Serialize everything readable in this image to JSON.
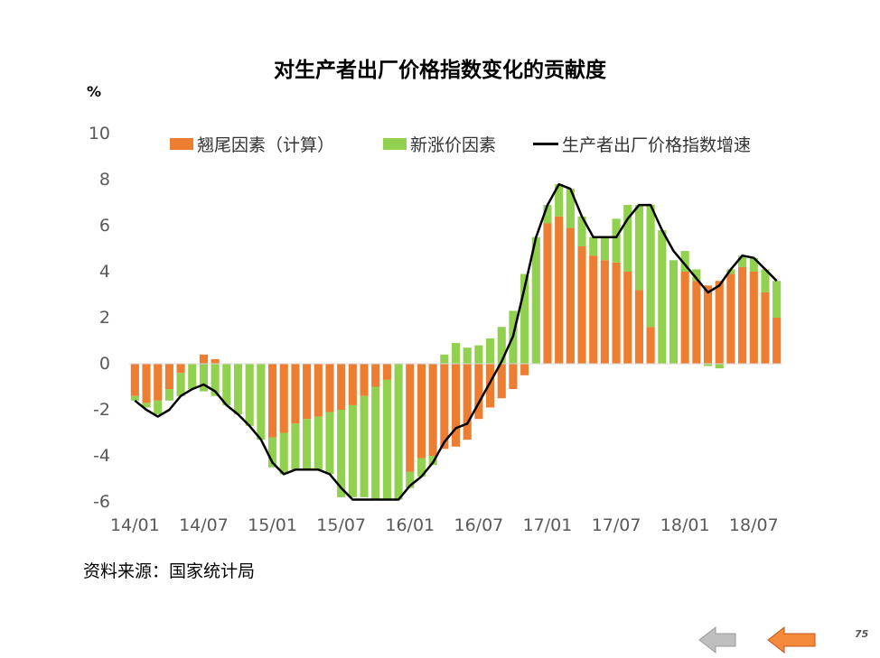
{
  "title": "对生产者出厂价格指数变化的贡献度",
  "unit": "%",
  "source": "资料来源：国家统计局",
  "page_number": "75",
  "nav": {
    "back_icon": "arrow-left-gray-icon",
    "prev_icon": "arrow-left-orange-icon"
  },
  "colors": {
    "carryover": "#ED7D31",
    "new_price": "#92D050",
    "line": "#000000",
    "axis": "#D9D9D9",
    "text": "#595959"
  },
  "chart_data": {
    "type": "bar",
    "stacked": true,
    "ylim": [
      -6,
      10
    ],
    "yticks": [
      -6,
      -4,
      -2,
      0,
      2,
      4,
      6,
      8,
      10
    ],
    "x_tick_labels": [
      "14/01",
      "14/07",
      "15/01",
      "15/07",
      "16/01",
      "16/07",
      "17/01",
      "17/07",
      "18/01",
      "18/07"
    ],
    "x_tick_every": 6,
    "legend": {
      "position": "top",
      "labels": [
        "翘尾因素（计算）",
        "新涨价因素",
        "生产者出厂价格指数增速"
      ]
    },
    "x": [
      "14/01",
      "14/02",
      "14/03",
      "14/04",
      "14/05",
      "14/06",
      "14/07",
      "14/08",
      "14/09",
      "14/10",
      "14/11",
      "14/12",
      "15/01",
      "15/02",
      "15/03",
      "15/04",
      "15/05",
      "15/06",
      "15/07",
      "15/08",
      "15/09",
      "15/10",
      "15/11",
      "15/12",
      "16/01",
      "16/02",
      "16/03",
      "16/04",
      "16/05",
      "16/06",
      "16/07",
      "16/08",
      "16/09",
      "16/10",
      "16/11",
      "16/12",
      "17/01",
      "17/02",
      "17/03",
      "17/04",
      "17/05",
      "17/06",
      "17/07",
      "17/08",
      "17/09",
      "17/10",
      "17/11",
      "17/12",
      "18/01",
      "18/02",
      "18/03",
      "18/04",
      "18/05",
      "18/06",
      "18/07",
      "18/08",
      "18/09"
    ],
    "series": [
      {
        "name": "翘尾因素（计算）",
        "values": [
          -1.4,
          -1.7,
          -1.6,
          -1.1,
          -0.4,
          0.0,
          0.4,
          0.2,
          0.0,
          0.0,
          0.0,
          0.0,
          -3.2,
          -3.0,
          -2.6,
          -2.4,
          -2.3,
          -2.1,
          -2.0,
          -1.8,
          -1.4,
          -1.0,
          -0.7,
          0.0,
          -4.7,
          -4.1,
          -4.0,
          -3.7,
          -3.6,
          -3.3,
          -2.4,
          -1.9,
          -1.5,
          -1.1,
          -0.5,
          0.0,
          6.1,
          6.4,
          5.9,
          5.1,
          4.7,
          4.5,
          4.4,
          4.0,
          3.2,
          1.6,
          0.0,
          0.0,
          4.0,
          3.6,
          3.4,
          3.6,
          3.9,
          4.2,
          4.0,
          3.1,
          2.0
        ]
      },
      {
        "name": "新涨价因素",
        "values": [
          -0.2,
          -0.2,
          -0.6,
          -0.5,
          -1.0,
          -1.1,
          -1.2,
          -1.4,
          -1.8,
          -2.2,
          -2.7,
          -3.3,
          -1.3,
          -1.8,
          -2.0,
          -2.2,
          -2.3,
          -2.7,
          -3.8,
          -4.0,
          -4.4,
          -4.9,
          -5.2,
          -5.9,
          -0.7,
          -0.8,
          -0.4,
          0.4,
          0.9,
          0.7,
          0.8,
          1.1,
          1.6,
          2.3,
          3.9,
          5.5,
          0.8,
          1.4,
          1.7,
          1.3,
          0.8,
          1.0,
          1.9,
          2.9,
          3.7,
          5.3,
          5.8,
          4.5,
          0.9,
          0.5,
          -0.1,
          -0.2,
          0.2,
          0.5,
          0.6,
          1.0,
          1.6
        ]
      },
      {
        "name": "生产者出厂价格指数增速",
        "type": "line",
        "values": [
          -1.6,
          -2.0,
          -2.3,
          -2.0,
          -1.4,
          -1.1,
          -0.9,
          -1.2,
          -1.8,
          -2.2,
          -2.7,
          -3.3,
          -4.3,
          -4.8,
          -4.6,
          -4.6,
          -4.6,
          -4.8,
          -5.4,
          -5.9,
          -5.9,
          -5.9,
          -5.9,
          -5.9,
          -5.3,
          -4.9,
          -4.3,
          -3.4,
          -2.8,
          -2.6,
          -1.7,
          -0.8,
          0.1,
          1.2,
          3.3,
          5.5,
          6.9,
          7.8,
          7.6,
          6.4,
          5.5,
          5.5,
          5.5,
          6.3,
          6.9,
          6.9,
          5.8,
          4.9,
          4.3,
          3.7,
          3.1,
          3.4,
          4.1,
          4.7,
          4.6,
          4.1,
          3.6
        ]
      }
    ]
  }
}
